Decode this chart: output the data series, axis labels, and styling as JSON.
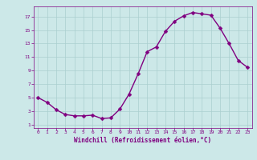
{
  "x": [
    0,
    1,
    2,
    3,
    4,
    5,
    6,
    7,
    8,
    9,
    10,
    11,
    12,
    13,
    14,
    15,
    16,
    17,
    18,
    19,
    20,
    21,
    22,
    23
  ],
  "y": [
    5.0,
    4.3,
    3.2,
    2.5,
    2.3,
    2.3,
    2.4,
    1.9,
    2.0,
    3.3,
    5.5,
    8.5,
    11.8,
    12.5,
    14.8,
    16.3,
    17.1,
    17.6,
    17.4,
    17.2,
    15.3,
    13.0,
    10.5,
    9.5
  ],
  "line_color": "#800080",
  "marker": "D",
  "marker_size": 2.5,
  "bg_color": "#cce8e8",
  "grid_color": "#aacfcf",
  "xlabel": "Windchill (Refroidissement éolien,°C)",
  "xlim": [
    -0.5,
    23.5
  ],
  "ylim": [
    0.5,
    18.5
  ],
  "xticks": [
    0,
    1,
    2,
    3,
    4,
    5,
    6,
    7,
    8,
    9,
    10,
    11,
    12,
    13,
    14,
    15,
    16,
    17,
    18,
    19,
    20,
    21,
    22,
    23
  ],
  "yticks": [
    1,
    3,
    5,
    7,
    9,
    11,
    13,
    15,
    17
  ],
  "tick_color": "#800080",
  "label_color": "#800080",
  "line_width": 1.0
}
